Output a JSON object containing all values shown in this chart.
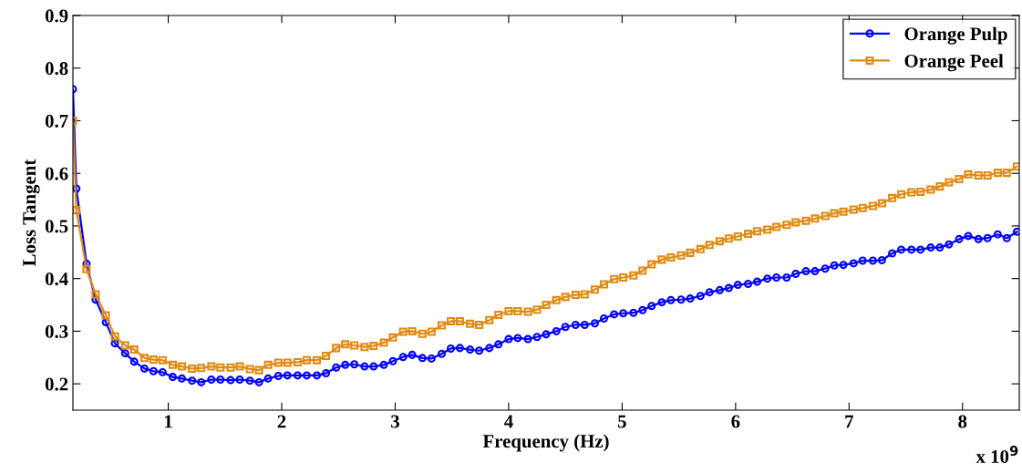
{
  "chart_data": {
    "type": "line",
    "xlabel": "Frequency (Hz)",
    "ylabel": "Loss Tangent",
    "annotations": [
      "x 10$^{9}$"
    ],
    "x": [
      0.16,
      0.19,
      0.28,
      0.36,
      0.45,
      0.53,
      0.62,
      0.7,
      0.79,
      0.87,
      0.95,
      1.04,
      1.12,
      1.21,
      1.29,
      1.38,
      1.46,
      1.55,
      1.63,
      1.72,
      1.8,
      1.88,
      1.97,
      2.05,
      2.14,
      2.22,
      2.31,
      2.39,
      2.48,
      2.56,
      2.64,
      2.73,
      2.81,
      2.9,
      2.98,
      3.07,
      3.15,
      3.24,
      3.32,
      3.41,
      3.49,
      3.57,
      3.66,
      3.74,
      3.83,
      3.91,
      4.0,
      4.08,
      4.17,
      4.25,
      4.33,
      4.42,
      4.5,
      4.59,
      4.67,
      4.76,
      4.84,
      4.93,
      5.01,
      5.1,
      5.18,
      5.26,
      5.35,
      5.43,
      5.52,
      5.6,
      5.69,
      5.77,
      5.86,
      5.94,
      6.02,
      6.11,
      6.19,
      6.28,
      6.36,
      6.45,
      6.53,
      6.62,
      6.7,
      6.79,
      6.87,
      6.95,
      7.04,
      7.12,
      7.21,
      7.29,
      7.38,
      7.46,
      7.55,
      7.63,
      7.72,
      7.8,
      7.88,
      7.97,
      8.05,
      8.14,
      8.22,
      8.31,
      8.39,
      8.48
    ],
    "series": [
      {
        "name": "Orange Pulp",
        "color": "#0000ff",
        "marker": "circle",
        "values": [
          0.76,
          0.571,
          0.428,
          0.36,
          0.317,
          0.277,
          0.258,
          0.242,
          0.229,
          0.224,
          0.222,
          0.213,
          0.21,
          0.206,
          0.203,
          0.208,
          0.208,
          0.207,
          0.208,
          0.206,
          0.203,
          0.21,
          0.215,
          0.216,
          0.216,
          0.216,
          0.216,
          0.22,
          0.231,
          0.236,
          0.237,
          0.233,
          0.233,
          0.236,
          0.243,
          0.251,
          0.255,
          0.249,
          0.248,
          0.257,
          0.267,
          0.268,
          0.265,
          0.263,
          0.268,
          0.275,
          0.285,
          0.287,
          0.285,
          0.289,
          0.294,
          0.3,
          0.308,
          0.312,
          0.312,
          0.315,
          0.324,
          0.332,
          0.334,
          0.335,
          0.34,
          0.348,
          0.355,
          0.359,
          0.36,
          0.362,
          0.367,
          0.374,
          0.378,
          0.382,
          0.388,
          0.39,
          0.394,
          0.4,
          0.402,
          0.402,
          0.409,
          0.414,
          0.414,
          0.419,
          0.425,
          0.426,
          0.429,
          0.434,
          0.434,
          0.435,
          0.448,
          0.455,
          0.455,
          0.455,
          0.459,
          0.459,
          0.465,
          0.475,
          0.481,
          0.475,
          0.477,
          0.484,
          0.477,
          0.489
        ]
      },
      {
        "name": "Orange Peel",
        "color": "#e08a12",
        "marker": "square",
        "values": [
          0.7,
          0.53,
          0.418,
          0.37,
          0.33,
          0.29,
          0.273,
          0.265,
          0.249,
          0.246,
          0.245,
          0.236,
          0.233,
          0.229,
          0.23,
          0.233,
          0.231,
          0.231,
          0.233,
          0.228,
          0.226,
          0.236,
          0.24,
          0.24,
          0.241,
          0.245,
          0.245,
          0.253,
          0.268,
          0.275,
          0.273,
          0.27,
          0.272,
          0.278,
          0.288,
          0.299,
          0.3,
          0.295,
          0.299,
          0.311,
          0.319,
          0.319,
          0.314,
          0.312,
          0.321,
          0.331,
          0.338,
          0.338,
          0.337,
          0.341,
          0.35,
          0.359,
          0.365,
          0.369,
          0.37,
          0.379,
          0.389,
          0.399,
          0.402,
          0.406,
          0.415,
          0.427,
          0.436,
          0.44,
          0.444,
          0.449,
          0.456,
          0.464,
          0.471,
          0.476,
          0.48,
          0.485,
          0.49,
          0.493,
          0.498,
          0.502,
          0.507,
          0.51,
          0.514,
          0.519,
          0.524,
          0.527,
          0.531,
          0.534,
          0.538,
          0.543,
          0.553,
          0.56,
          0.564,
          0.565,
          0.569,
          0.575,
          0.583,
          0.589,
          0.598,
          0.596,
          0.596,
          0.601,
          0.601,
          0.613
        ]
      }
    ],
    "xlim": [
      0.16,
      8.5
    ],
    "ylim": [
      0.15,
      0.9
    ],
    "xticks": [
      1,
      2,
      3,
      4,
      5,
      6,
      7,
      8
    ],
    "yticks": [
      0.2,
      0.3,
      0.4,
      0.5,
      0.6,
      0.7,
      0.8,
      0.9
    ],
    "legend": "top right"
  }
}
